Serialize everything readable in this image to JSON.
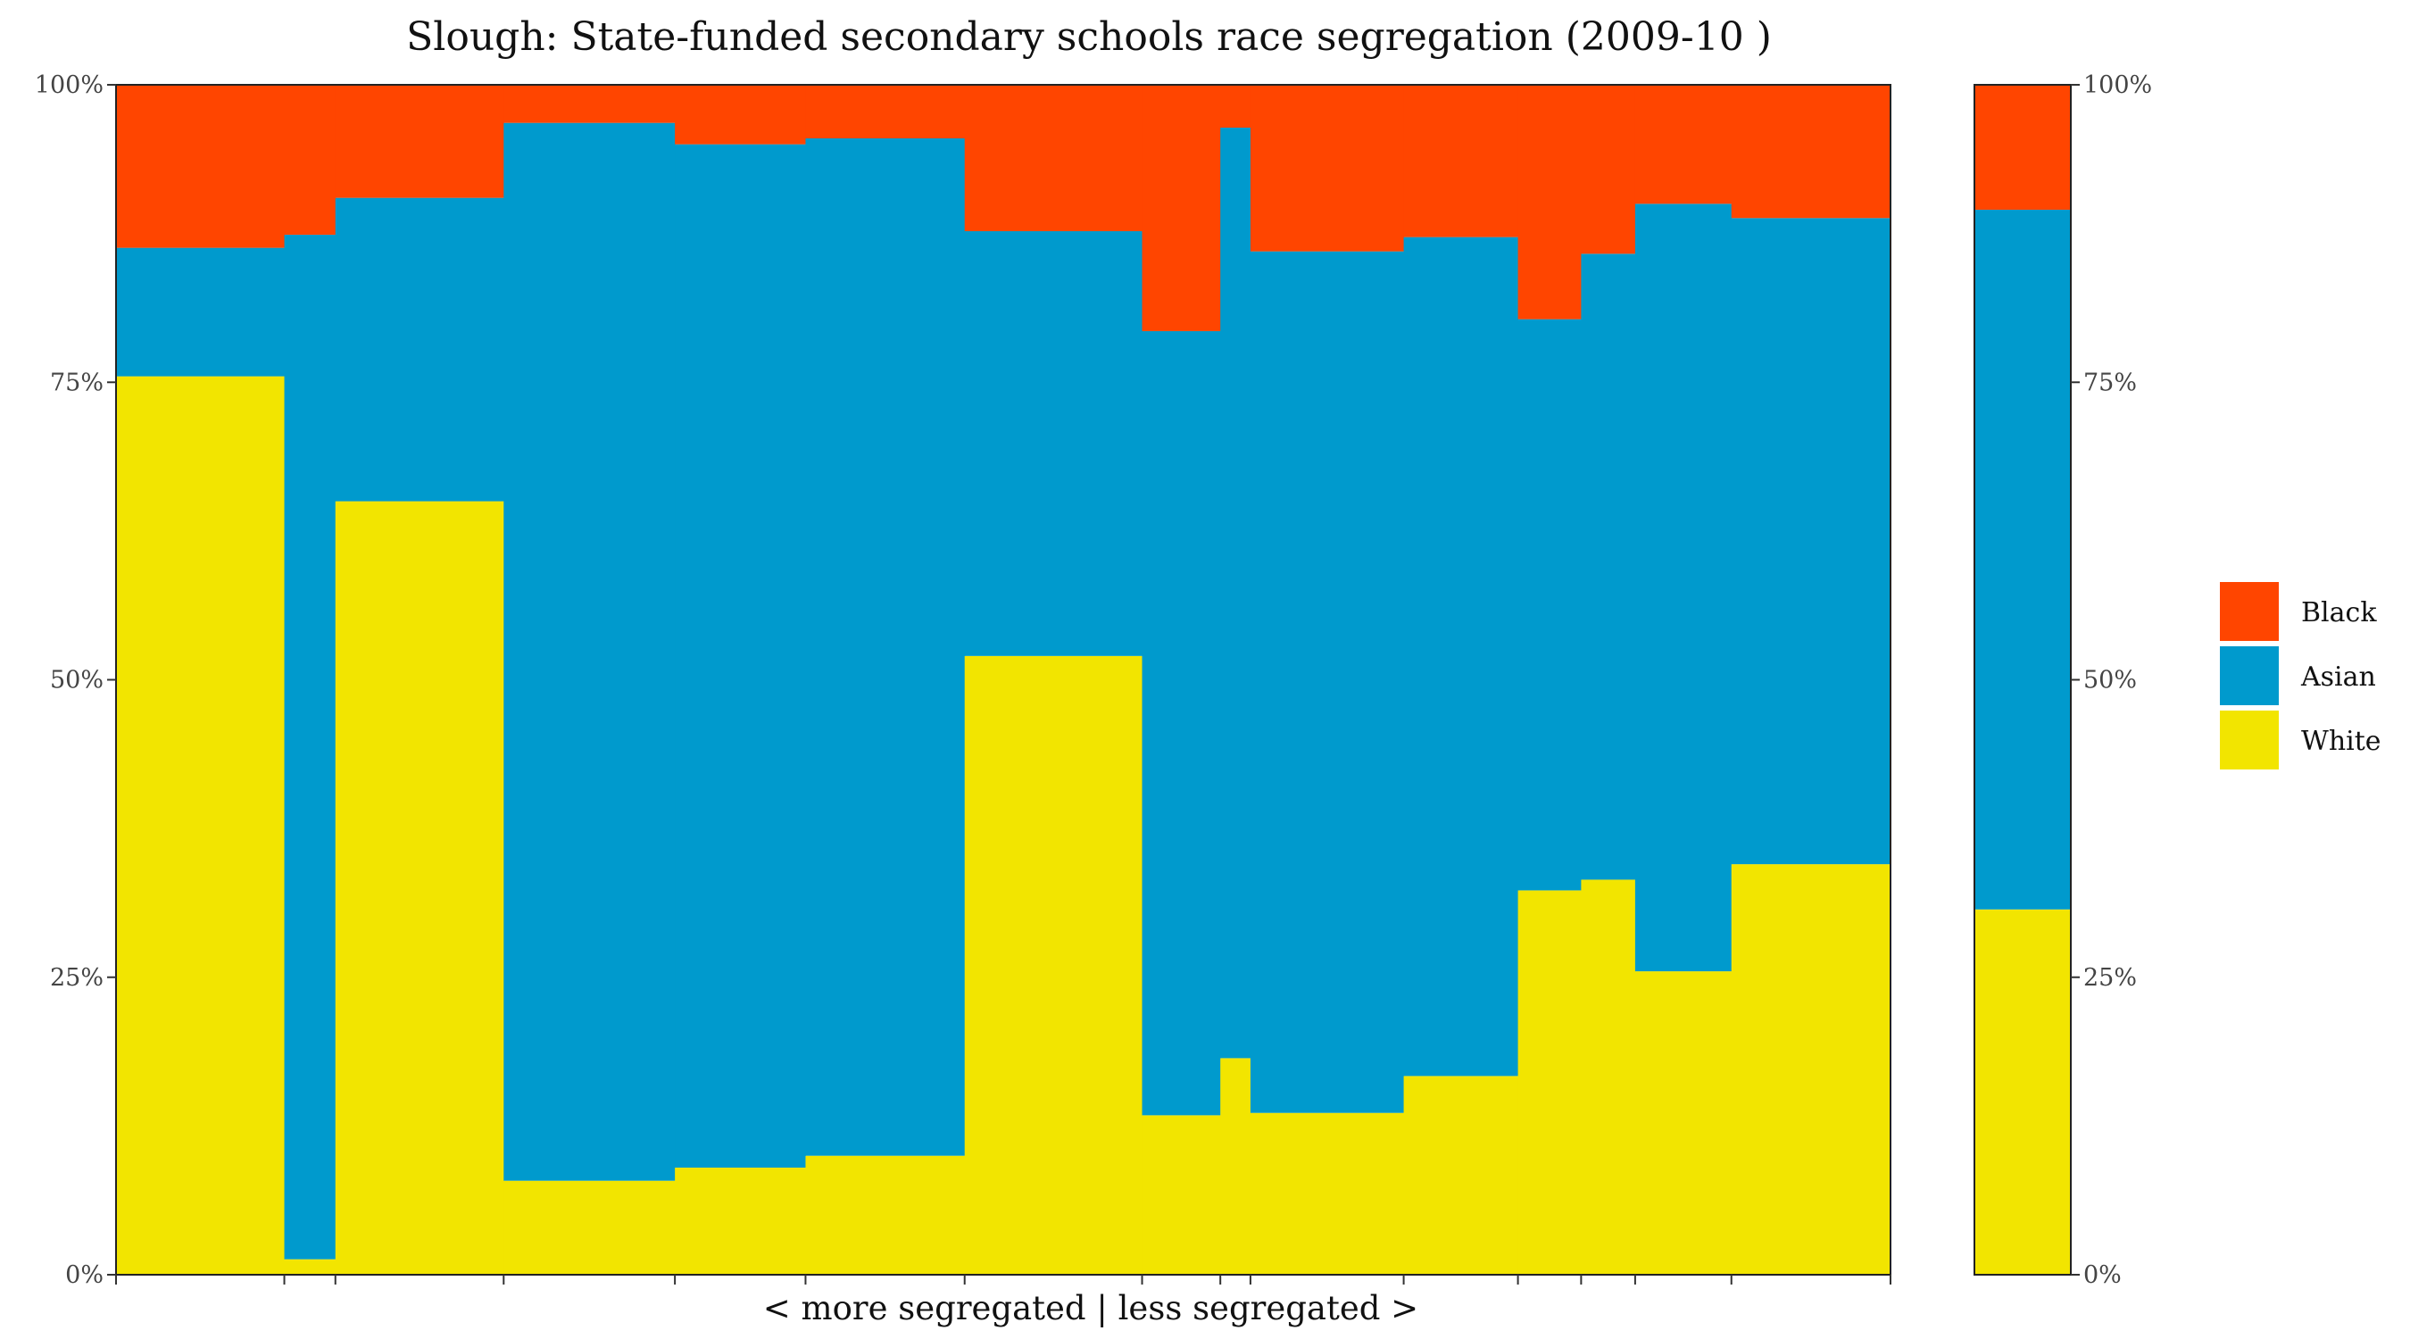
{
  "chart_data": {
    "type": "bar",
    "subtype": "stacked-variable-width",
    "title": "Slough: State-funded secondary schools race segregation (2009-10 )",
    "xlabel": "< more segregated | less segregated >",
    "ylabel": "",
    "ylim": [
      0,
      100
    ],
    "y_tick_labels": [
      "0%",
      "25%",
      "50%",
      "75%",
      "100%"
    ],
    "y_tick_values": [
      0,
      25,
      50,
      75,
      100
    ],
    "legend": {
      "placement": "right",
      "entries": [
        {
          "name": "Black",
          "color": "#FF4500"
        },
        {
          "name": "Asian",
          "color": "#009ACD"
        },
        {
          "name": "White",
          "color": "#F2E500"
        }
      ]
    },
    "colors": {
      "White": "#F2E500",
      "Asian": "#009ACD",
      "Black": "#FF4500"
    },
    "schools": [
      {
        "share": 5.14,
        "white": 75.5,
        "asian": 10.8,
        "black": 13.7
      },
      {
        "share": 1.56,
        "white": 1.3,
        "asian": 86.1,
        "black": 12.6
      },
      {
        "share": 5.14,
        "white": 65.0,
        "asian": 25.5,
        "black": 9.5
      },
      {
        "share": 5.23,
        "white": 7.9,
        "asian": 88.9,
        "black": 3.2
      },
      {
        "share": 3.99,
        "white": 9.0,
        "asian": 86.0,
        "black": 5.0
      },
      {
        "share": 4.86,
        "white": 10.0,
        "asian": 85.5,
        "black": 4.5
      },
      {
        "share": 5.42,
        "white": 52.0,
        "asian": 35.7,
        "black": 12.3
      },
      {
        "share": 2.39,
        "white": 13.4,
        "asian": 65.9,
        "black": 20.7
      },
      {
        "share": 0.92,
        "white": 18.2,
        "asian": 78.2,
        "black": 3.6
      },
      {
        "share": 4.68,
        "white": 13.6,
        "asian": 72.4,
        "black": 14.0
      },
      {
        "share": 3.49,
        "white": 16.7,
        "asian": 70.5,
        "black": 12.8
      },
      {
        "share": 1.93,
        "white": 32.3,
        "asian": 48.0,
        "black": 19.7
      },
      {
        "share": 1.65,
        "white": 33.2,
        "asian": 52.6,
        "black": 14.2
      },
      {
        "share": 2.94,
        "white": 25.5,
        "asian": 64.5,
        "black": 10.0
      },
      {
        "share": 4.86,
        "white": 34.5,
        "asian": 54.3,
        "black": 11.2
      }
    ],
    "overall": {
      "white": 30.7,
      "asian": 58.8,
      "black": 10.5
    }
  }
}
